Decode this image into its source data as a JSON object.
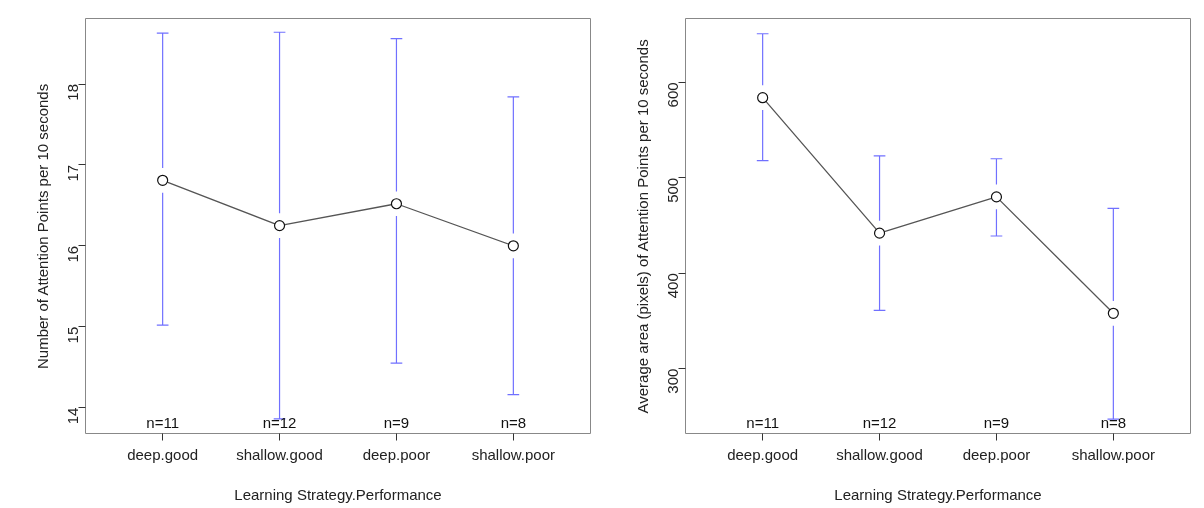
{
  "chart_data": [
    {
      "type": "line",
      "xlabel": "Learning Strategy.Performance",
      "ylabel": "Number of Attention Points per 10 seconds",
      "categories": [
        "deep.good",
        "shallow.good",
        "deep.poor",
        "shallow.poor"
      ],
      "series": [
        {
          "color": "#555555",
          "values": [
            16.81,
            16.25,
            16.52,
            16.0
          ],
          "errors": [
            [
              15.02,
              18.63
            ],
            [
              13.86,
              18.64
            ],
            [
              14.55,
              18.56
            ],
            [
              14.16,
              17.84
            ]
          ]
        }
      ],
      "marker": "circle",
      "ylim": [
        13.68,
        18.81
      ],
      "yticks": [
        14,
        15,
        16,
        17,
        18
      ],
      "annotations": [
        "n=11",
        "n=12",
        "n=9",
        "n=8"
      ]
    },
    {
      "type": "line",
      "xlabel": "Learning Strategy.Performance",
      "ylabel": "Average area (pixels) of Attention Points per 10 seconds",
      "categories": [
        "deep.good",
        "shallow.good",
        "deep.poor",
        "shallow.poor"
      ],
      "series": [
        {
          "color": "#555555",
          "values": [
            584,
            442,
            480,
            358
          ],
          "errors": [
            [
              518,
              651
            ],
            [
              361,
              523
            ],
            [
              439,
              520
            ],
            [
              247,
              468
            ]
          ]
        }
      ],
      "marker": "circle",
      "ylim": [
        232,
        667
      ],
      "yticks": [
        300,
        400,
        500,
        600
      ],
      "annotations": [
        "n=11",
        "n=12",
        "n=9",
        "n=8"
      ]
    }
  ]
}
